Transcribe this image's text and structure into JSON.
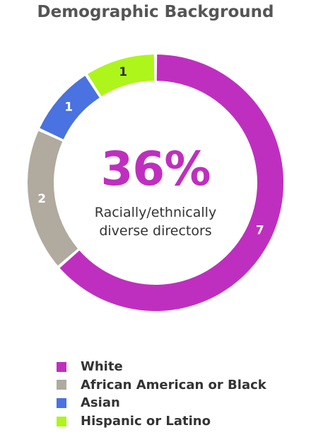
{
  "chart_data": {
    "type": "pie",
    "title": "Demographic Background",
    "center": {
      "value": "36%",
      "label_lines": [
        "Racially/ethnically",
        "diverse directors"
      ]
    },
    "slices": [
      {
        "name": "White",
        "value": 7,
        "label": "7",
        "color": "#bf2fbf",
        "label_color": "#ffffff"
      },
      {
        "name": "African American or Black",
        "value": 2,
        "label": "2",
        "color": "#b0aa9f",
        "label_color": "#ffffff"
      },
      {
        "name": "Asian",
        "value": 1,
        "label": "1",
        "color": "#4a72e0",
        "label_color": "#ffffff"
      },
      {
        "name": "Hispanic or Latino",
        "value": 1,
        "label": "1",
        "color": "#aef51b",
        "label_color": "#333333"
      }
    ],
    "legend_placement": "bottom-left"
  }
}
